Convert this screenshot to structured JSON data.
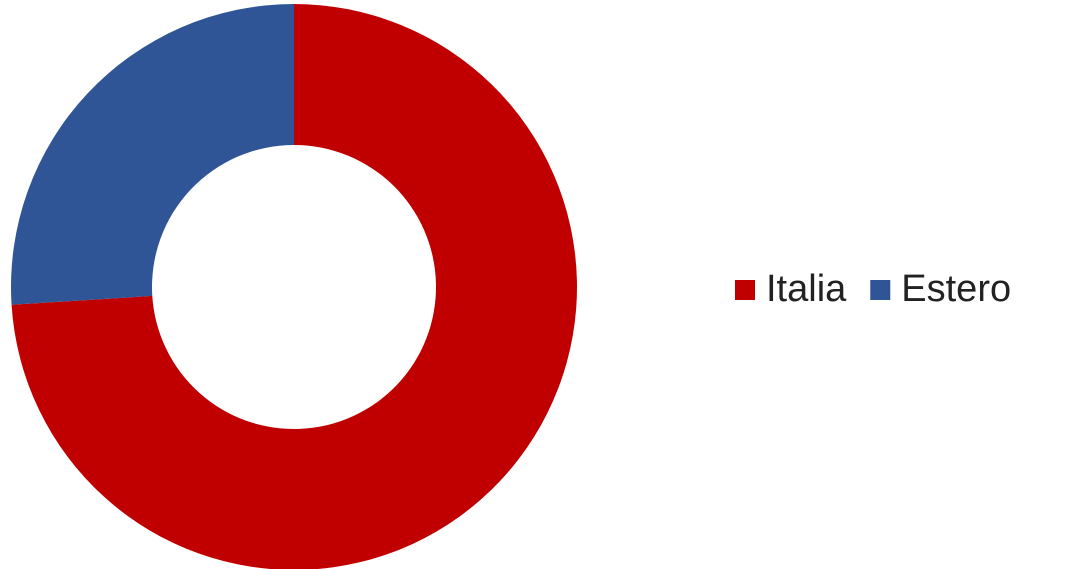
{
  "chart_data": {
    "type": "donut",
    "categories": [
      "Italia",
      "Estero"
    ],
    "values": [
      74,
      26
    ],
    "colors": [
      "#c00000",
      "#2f5597"
    ],
    "legend": "right"
  }
}
